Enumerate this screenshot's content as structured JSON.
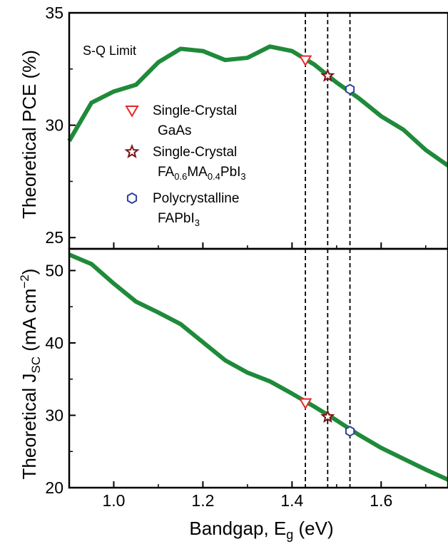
{
  "chart_data": {
    "type": "line",
    "xlabel": "Bandgap, E",
    "xlabel_sub": "g",
    "xlabel_unit": " (eV)",
    "xlim": [
      0.9,
      1.75
    ],
    "x_ticks": [
      1.0,
      1.2,
      1.4,
      1.6
    ],
    "x_tick_labels": [
      "1.0",
      "1.2",
      "1.4",
      "1.6"
    ],
    "line_color": "#1f8a3a",
    "vlines": [
      1.43,
      1.48,
      1.53
    ],
    "panels": [
      {
        "ylabel": "Theoretical PCE (%)",
        "ylim": [
          24.5,
          35
        ],
        "y_ticks": [
          25,
          30,
          35
        ],
        "y_tick_labels": [
          "25",
          "30",
          "35"
        ],
        "annotation": "S-Q Limit",
        "x": [
          0.9,
          0.95,
          1.0,
          1.05,
          1.1,
          1.15,
          1.2,
          1.25,
          1.3,
          1.35,
          1.4,
          1.45,
          1.5,
          1.55,
          1.6,
          1.65,
          1.7,
          1.75
        ],
        "y": [
          29.3,
          31.0,
          31.5,
          31.8,
          32.8,
          33.4,
          33.3,
          32.9,
          33.0,
          33.5,
          33.3,
          32.7,
          31.9,
          31.2,
          30.4,
          29.8,
          28.9,
          28.2
        ],
        "markers": [
          {
            "x": 1.43,
            "y": 32.9,
            "shape": "triangle-down",
            "color": "#e8262b"
          },
          {
            "x": 1.48,
            "y": 32.2,
            "shape": "star",
            "color": "#7b1416"
          },
          {
            "x": 1.53,
            "y": 31.6,
            "shape": "hexagon",
            "color": "#2e3f9e"
          }
        ]
      },
      {
        "ylabel": "Theoretical J",
        "ylabel_sub": "SC",
        "ylabel_unit": " (mA cm",
        "ylabel_sup": "−2",
        "ylabel_close": ")",
        "ylim": [
          20,
          53
        ],
        "y_ticks": [
          20,
          30,
          40,
          50
        ],
        "y_tick_labels": [
          "20",
          "30",
          "40",
          "50"
        ],
        "x": [
          0.9,
          0.95,
          1.0,
          1.05,
          1.1,
          1.15,
          1.2,
          1.25,
          1.3,
          1.35,
          1.4,
          1.45,
          1.5,
          1.55,
          1.6,
          1.65,
          1.7,
          1.75
        ],
        "y": [
          52.2,
          50.9,
          48.2,
          45.7,
          44.2,
          42.6,
          40.1,
          37.6,
          35.9,
          34.7,
          33.0,
          31.2,
          29.3,
          27.3,
          25.5,
          24.0,
          22.5,
          21.1
        ],
        "markers": [
          {
            "x": 1.43,
            "y": 31.7,
            "shape": "triangle-down",
            "color": "#e8262b"
          },
          {
            "x": 1.48,
            "y": 29.8,
            "shape": "star",
            "color": "#7b1416"
          },
          {
            "x": 1.53,
            "y": 27.8,
            "shape": "hexagon",
            "color": "#2e3f9e"
          }
        ]
      }
    ],
    "legend": [
      {
        "shape": "triangle-down",
        "color": "#e8262b",
        "line1": "Single-Crystal",
        "line2": "GaAs"
      },
      {
        "shape": "star",
        "color": "#7b1416",
        "line1": "Single-Crystal",
        "line2_parts": [
          "FA",
          "0.6",
          "MA",
          "0.4",
          "PbI",
          "3"
        ]
      },
      {
        "shape": "hexagon",
        "color": "#2e3f9e",
        "line1": "Polycrystalline",
        "line2_parts": [
          "FAPbI",
          "3"
        ]
      }
    ]
  }
}
